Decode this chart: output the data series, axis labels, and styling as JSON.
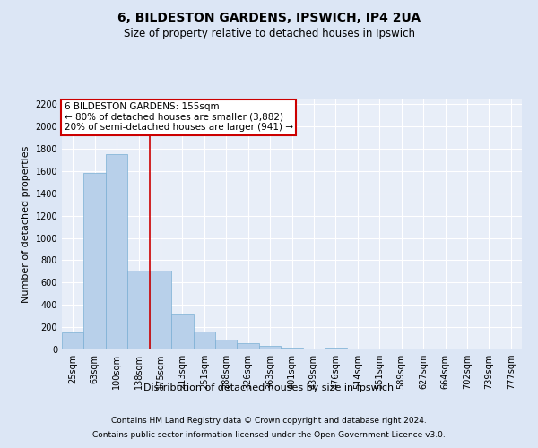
{
  "title_line1": "6, BILDESTON GARDENS, IPSWICH, IP4 2UA",
  "title_line2": "Size of property relative to detached houses in Ipswich",
  "xlabel": "Distribution of detached houses by size in Ipswich",
  "ylabel": "Number of detached properties",
  "categories": [
    "25sqm",
    "63sqm",
    "100sqm",
    "138sqm",
    "175sqm",
    "213sqm",
    "251sqm",
    "288sqm",
    "326sqm",
    "363sqm",
    "401sqm",
    "439sqm",
    "476sqm",
    "514sqm",
    "551sqm",
    "589sqm",
    "627sqm",
    "664sqm",
    "702sqm",
    "739sqm",
    "777sqm"
  ],
  "values": [
    155,
    1585,
    1755,
    705,
    710,
    315,
    160,
    90,
    55,
    30,
    20,
    0,
    15,
    0,
    0,
    0,
    0,
    0,
    0,
    0,
    0
  ],
  "bar_color": "#b8d0ea",
  "bar_edge_color": "#7aafd4",
  "vline_color": "#cc0000",
  "annotation_text": "6 BILDESTON GARDENS: 155sqm\n← 80% of detached houses are smaller (3,882)\n20% of semi-detached houses are larger (941) →",
  "annotation_box_color": "#ffffff",
  "annotation_box_edge_color": "#cc0000",
  "ylim": [
    0,
    2250
  ],
  "yticks": [
    0,
    200,
    400,
    600,
    800,
    1000,
    1200,
    1400,
    1600,
    1800,
    2000,
    2200
  ],
  "bg_color": "#dce6f5",
  "plot_bg_color": "#e8eef8",
  "footer_line1": "Contains HM Land Registry data © Crown copyright and database right 2024.",
  "footer_line2": "Contains public sector information licensed under the Open Government Licence v3.0.",
  "title_fontsize": 10,
  "subtitle_fontsize": 8.5,
  "axis_label_fontsize": 8,
  "tick_fontsize": 7,
  "annotation_fontsize": 7.5,
  "footer_fontsize": 6.5
}
